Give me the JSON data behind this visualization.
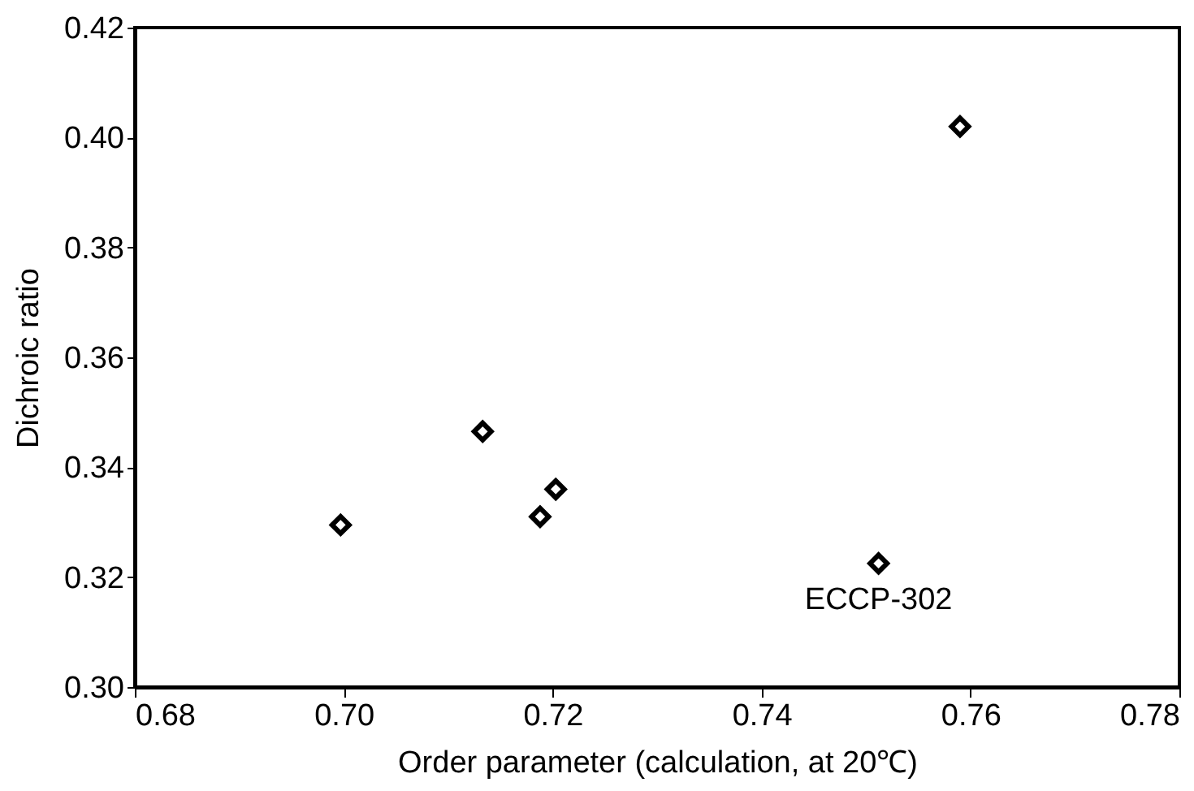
{
  "chart_data": {
    "type": "scatter",
    "xlabel": "Order parameter (calculation, at 20℃)",
    "ylabel": "Dichroic ratio",
    "x": [
      0.6997,
      0.7133,
      0.7188,
      0.7203,
      0.7512,
      0.759
    ],
    "series": [
      {
        "color": "#000000",
        "values": [
          0.3295,
          0.3465,
          0.331,
          0.336,
          0.3225,
          0.402
        ]
      }
    ],
    "marker": "diamond",
    "xlim": [
      0.68,
      0.78
    ],
    "xticks": [
      0.68,
      {
        "value": 0.7,
        "label": "0.70"
      },
      0.72,
      0.74,
      0.76,
      0.78
    ],
    "ylim": [
      0.3,
      0.42
    ],
    "yticks": [
      {
        "value": 0.3,
        "label": "0.30"
      },
      0.32,
      0.34,
      0.36,
      0.38,
      {
        "value": 0.4,
        "label": "0.40"
      },
      0.42
    ],
    "grid": false,
    "annotations": [
      {
        "text": "ECCP-302",
        "x": 0.7512,
        "y": 0.3225
      }
    ]
  }
}
